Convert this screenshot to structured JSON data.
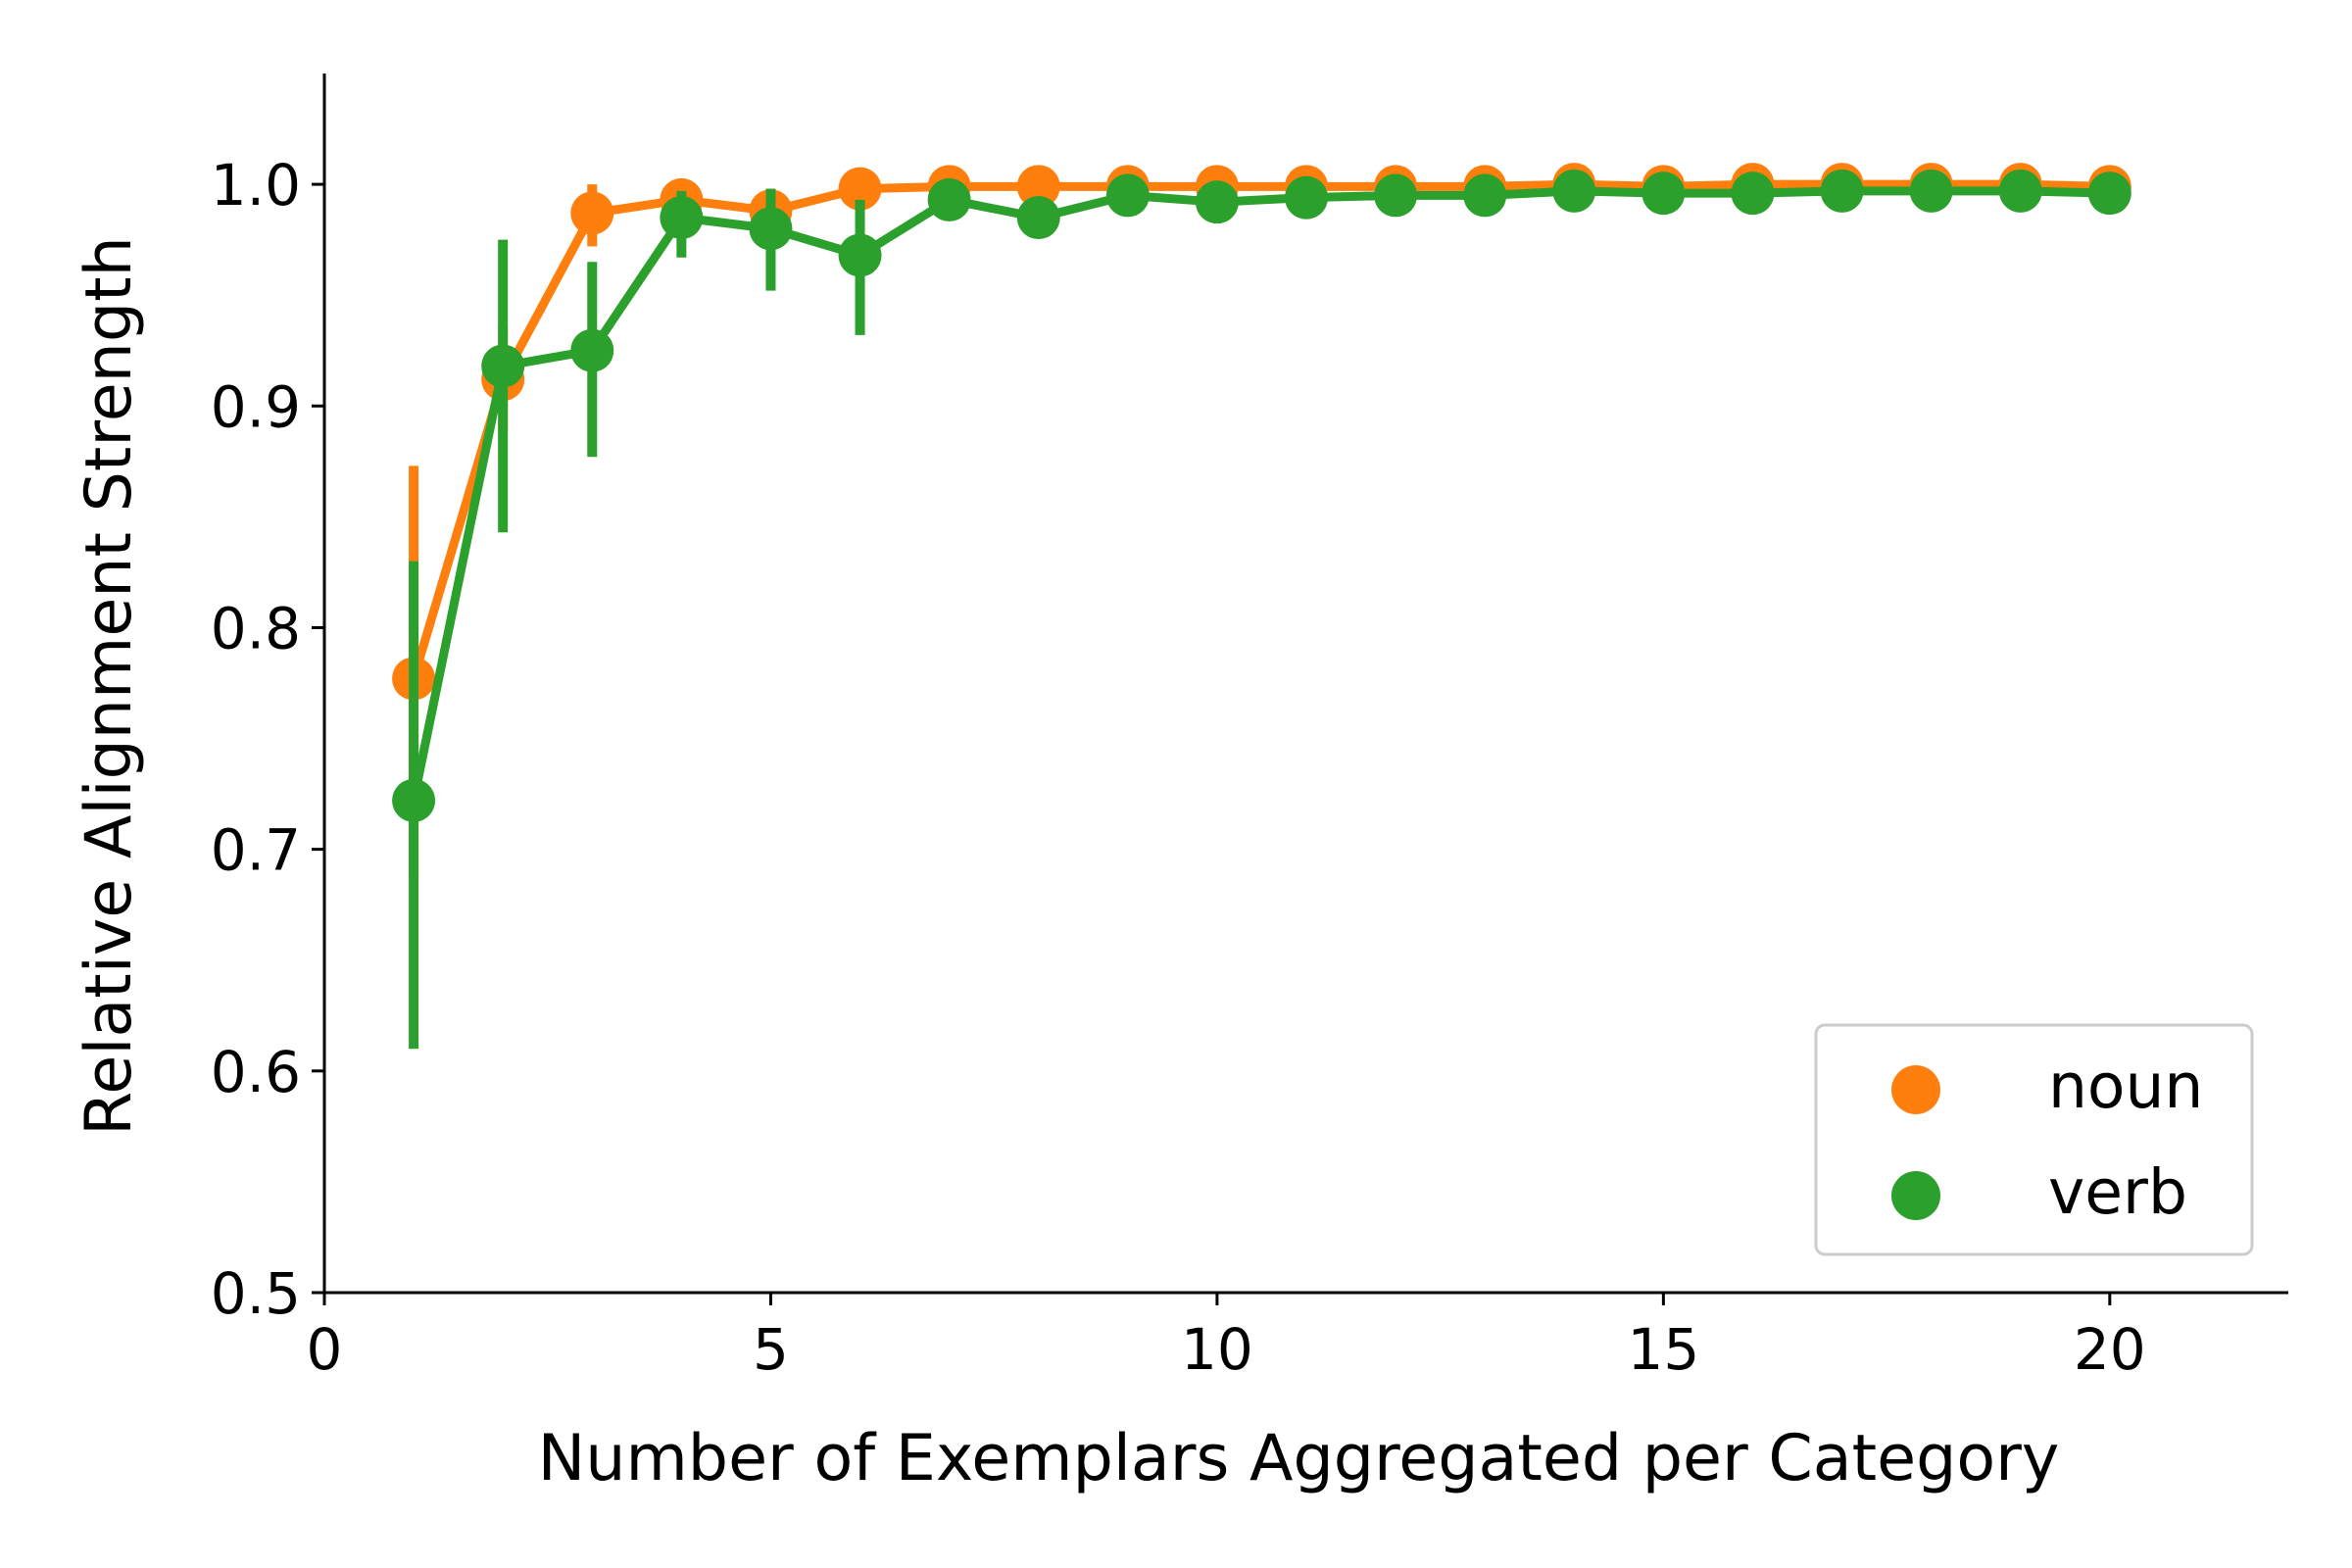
{
  "chart_data": {
    "type": "line",
    "title": "",
    "xlabel": "Number of Exemplars Aggregated per Category",
    "ylabel": "Relative Alignment Strength",
    "xlim": [
      0,
      22
    ],
    "ylim": [
      0.5,
      1.05
    ],
    "x_ticks": [
      0,
      5,
      10,
      15,
      20
    ],
    "x_tick_labels": [
      "0",
      "5",
      "10",
      "15",
      "20"
    ],
    "y_ticks": [
      0.5,
      0.6,
      0.7,
      0.8,
      0.9,
      1.0
    ],
    "y_tick_labels": [
      "0.5",
      "0.6",
      "0.7",
      "0.8",
      "0.9",
      "1.0"
    ],
    "grid": false,
    "legend_position": "lower-right",
    "x": [
      1,
      2,
      3,
      4,
      5,
      6,
      7,
      8,
      9,
      10,
      11,
      12,
      13,
      14,
      15,
      16,
      17,
      18,
      19,
      20
    ],
    "series": [
      {
        "name": "noun",
        "color": "#ff7f0e",
        "values": [
          0.777,
          0.912,
          0.987,
          0.993,
          0.988,
          0.998,
          0.999,
          0.999,
          0.999,
          0.999,
          0.999,
          0.999,
          0.999,
          1.0,
          0.999,
          1.0,
          1.0,
          1.0,
          1.0,
          0.999
        ],
        "error_low": [
          0.687,
          0.888,
          0.972,
          0.989,
          0.978,
          0.996,
          0.998,
          0.998,
          0.998,
          0.998,
          0.998,
          0.998,
          0.998,
          0.999,
          0.998,
          0.999,
          0.999,
          0.999,
          0.999,
          0.998
        ],
        "error_high": [
          0.873,
          0.936,
          1.0,
          0.997,
          0.998,
          1.0,
          1.0,
          1.0,
          1.0,
          1.0,
          1.0,
          1.0,
          1.0,
          1.0,
          1.0,
          1.0,
          1.0,
          1.0,
          1.0,
          1.0
        ]
      },
      {
        "name": "verb",
        "color": "#2ca02c",
        "values": [
          0.722,
          0.918,
          0.925,
          0.985,
          0.98,
          0.968,
          0.993,
          0.985,
          0.995,
          0.992,
          0.994,
          0.995,
          0.995,
          0.997,
          0.996,
          0.996,
          0.997,
          0.997,
          0.997,
          0.996
        ],
        "error_low": [
          0.61,
          0.843,
          0.877,
          0.967,
          0.952,
          0.932,
          0.988,
          0.98,
          0.992,
          0.988,
          0.991,
          0.992,
          0.993,
          0.995,
          0.994,
          0.994,
          0.995,
          0.995,
          0.995,
          0.994
        ],
        "error_high": [
          0.83,
          0.975,
          0.965,
          0.997,
          0.998,
          0.993,
          0.997,
          0.99,
          0.998,
          0.996,
          0.997,
          0.998,
          0.997,
          0.999,
          0.998,
          0.998,
          0.999,
          0.999,
          0.999,
          0.998
        ]
      }
    ]
  }
}
